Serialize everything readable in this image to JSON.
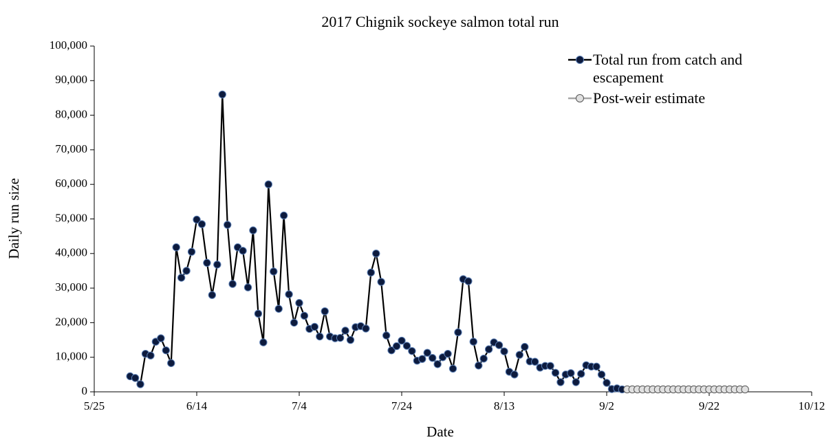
{
  "chart_data": {
    "type": "line",
    "title": "2017 Chignik sockeye salmon total run",
    "xlabel": "Date",
    "ylabel": "Daily run size",
    "xlim": [
      "5/25",
      "10/12"
    ],
    "xticks": [
      "5/25",
      "6/14",
      "7/4",
      "7/24",
      "8/13",
      "9/2",
      "9/22",
      "10/12"
    ],
    "ylim": [
      0,
      100000
    ],
    "yticks": [
      0,
      {
        "value": 10000,
        "label": "10,000"
      },
      {
        "value": 20000,
        "label": "20,000"
      },
      {
        "value": 30000,
        "label": "30,000"
      },
      {
        "value": 40000,
        "label": "40,000"
      },
      {
        "value": 50000,
        "label": "50,000"
      },
      {
        "value": 60000,
        "label": "60,000"
      },
      {
        "value": 70000,
        "label": "70,000"
      },
      {
        "value": 80000,
        "label": "80,000"
      },
      {
        "value": 90000,
        "label": "90,000"
      },
      {
        "value": 100000,
        "label": "100,000"
      }
    ],
    "grid": false,
    "legend": "upper right",
    "series": [
      {
        "name": "Total run from catch and escapement",
        "color": "#000000",
        "marker_color": "#0d1b3e",
        "marker_edge": "#5b7fb5",
        "x": [
          "6/1",
          "6/2",
          "6/3",
          "6/4",
          "6/5",
          "6/6",
          "6/7",
          "6/8",
          "6/9",
          "6/10",
          "6/11",
          "6/12",
          "6/13",
          "6/14",
          "6/15",
          "6/16",
          "6/17",
          "6/18",
          "6/19",
          "6/20",
          "6/21",
          "6/22",
          "6/23",
          "6/24",
          "6/25",
          "6/26",
          "6/27",
          "6/28",
          "6/29",
          "6/30",
          "7/1",
          "7/2",
          "7/3",
          "7/4",
          "7/5",
          "7/6",
          "7/7",
          "7/8",
          "7/9",
          "7/10",
          "7/11",
          "7/12",
          "7/13",
          "7/14",
          "7/15",
          "7/16",
          "7/17",
          "7/18",
          "7/19",
          "7/20",
          "7/21",
          "7/22",
          "7/23",
          "7/24",
          "7/25",
          "7/26",
          "7/27",
          "7/28",
          "7/29",
          "7/30",
          "7/31",
          "8/1",
          "8/2",
          "8/3",
          "8/4",
          "8/5",
          "8/6",
          "8/7",
          "8/8",
          "8/9",
          "8/10",
          "8/11",
          "8/12",
          "8/13",
          "8/14",
          "8/15",
          "8/16",
          "8/17",
          "8/18",
          "8/19",
          "8/20",
          "8/21",
          "8/22",
          "8/23",
          "8/24",
          "8/25",
          "8/26",
          "8/27",
          "8/28",
          "8/29",
          "8/30",
          "8/31",
          "9/1",
          "9/2",
          "9/3",
          "9/4",
          "9/5"
        ],
        "values": [
          4500,
          4000,
          2200,
          11000,
          10500,
          14500,
          15500,
          12000,
          8300,
          41800,
          33000,
          35000,
          40500,
          49800,
          48500,
          37300,
          28000,
          36800,
          86000,
          48300,
          31200,
          41800,
          40800,
          30200,
          46700,
          22600,
          14300,
          60000,
          34800,
          24000,
          51000,
          28200,
          20000,
          25700,
          22000,
          18200,
          18800,
          16000,
          23300,
          16000,
          15500,
          15600,
          17700,
          15000,
          18700,
          19000,
          18300,
          34500,
          40000,
          31800,
          16300,
          12000,
          13200,
          14800,
          13300,
          11800,
          9000,
          9500,
          11300,
          9800,
          8000,
          10000,
          11000,
          6700,
          17200,
          32600,
          32000,
          14500,
          7600,
          9600,
          12300,
          14300,
          13500,
          11700,
          5800,
          5000,
          10700,
          13000,
          8800,
          8700,
          7000,
          7500,
          7500,
          5500,
          2800,
          5000,
          5400,
          2800,
          5200,
          7700,
          7300,
          7300,
          5000,
          2600,
          800,
          1000,
          700
        ]
      },
      {
        "name": "Post-weir estimate",
        "color": "#a6a6a6",
        "marker_color": "#e0e0e0",
        "marker_edge": "#555555",
        "x": [
          "9/6",
          "9/7",
          "9/8",
          "9/9",
          "9/10",
          "9/11",
          "9/12",
          "9/13",
          "9/14",
          "9/15",
          "9/16",
          "9/17",
          "9/18",
          "9/19",
          "9/20",
          "9/21",
          "9/22",
          "9/23",
          "9/24",
          "9/25",
          "9/26",
          "9/27",
          "9/28",
          "9/29"
        ],
        "values": [
          700,
          700,
          700,
          700,
          700,
          700,
          700,
          700,
          700,
          700,
          700,
          700,
          700,
          700,
          700,
          700,
          700,
          700,
          700,
          700,
          700,
          700,
          700,
          700
        ]
      }
    ]
  }
}
